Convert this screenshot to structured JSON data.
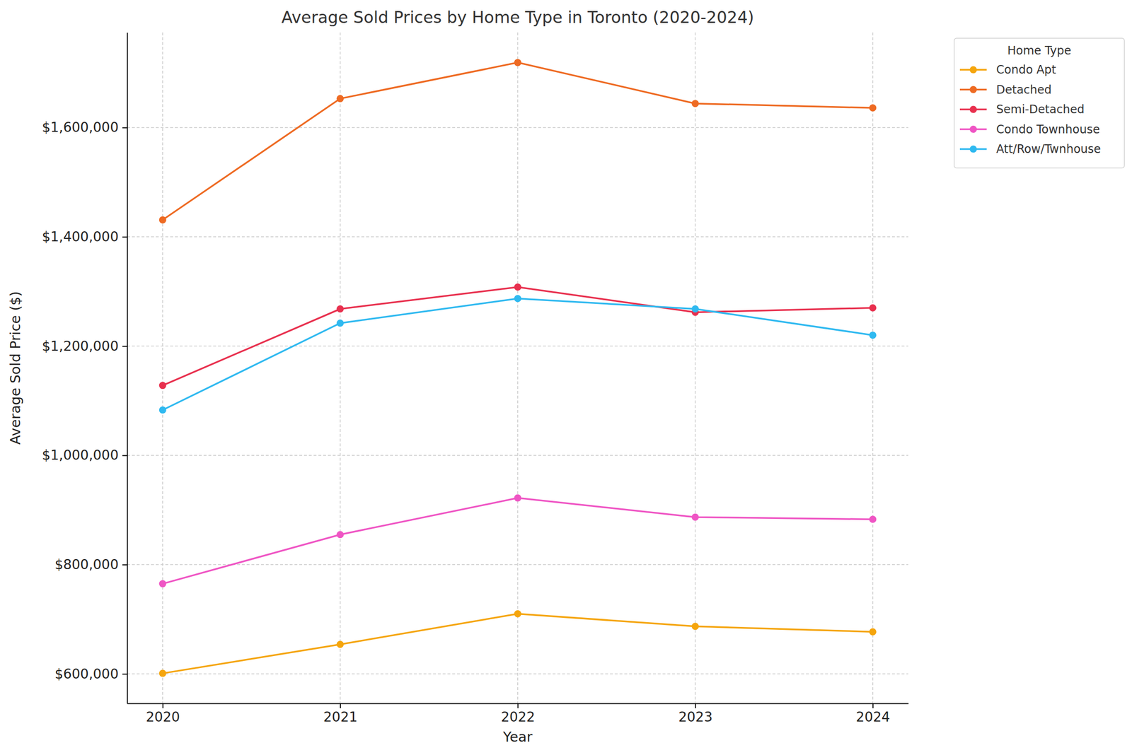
{
  "chart_data": {
    "type": "line",
    "title": "Average Sold Prices by Home Type in Toronto (2020-2024)",
    "x_label": "Year",
    "y_label": "Average Sold Price ($)",
    "legend_title": "Home Type",
    "x": [
      2020,
      2021,
      2022,
      2023,
      2024
    ],
    "xlim": [
      2019.8,
      2024.2
    ],
    "xticks": [
      2020,
      2021,
      2022,
      2023,
      2024
    ],
    "ylim": [
      546000,
      1774000
    ],
    "yticks": [
      {
        "value": 600000,
        "label": "$600,000"
      },
      {
        "value": 800000,
        "label": "$800,000"
      },
      {
        "value": 1000000,
        "label": "$1,000,000"
      },
      {
        "value": 1200000,
        "label": "$1,200,000"
      },
      {
        "value": 1400000,
        "label": "$1,400,000"
      },
      {
        "value": 1600000,
        "label": "$1,600,000"
      }
    ],
    "grid": true,
    "legend": "outside upper right",
    "marker": "circle",
    "line_style": "solid",
    "series": [
      {
        "name": "Condo Apt",
        "color": "#f5a50c",
        "values": [
          601000,
          654000,
          710000,
          687000,
          677000
        ]
      },
      {
        "name": "Detached",
        "color": "#ee6a22",
        "values": [
          1431000,
          1653000,
          1719000,
          1644000,
          1636000
        ]
      },
      {
        "name": "Semi-Detached",
        "color": "#e8304e",
        "values": [
          1128000,
          1268000,
          1308000,
          1262000,
          1270000
        ]
      },
      {
        "name": "Condo Townhouse",
        "color": "#ef55c4",
        "values": [
          765000,
          855000,
          922000,
          887000,
          883000
        ]
      },
      {
        "name": "Att/Row/Twnhouse",
        "color": "#2fb9f0",
        "values": [
          1083000,
          1242000,
          1287000,
          1268000,
          1220000
        ]
      }
    ]
  }
}
